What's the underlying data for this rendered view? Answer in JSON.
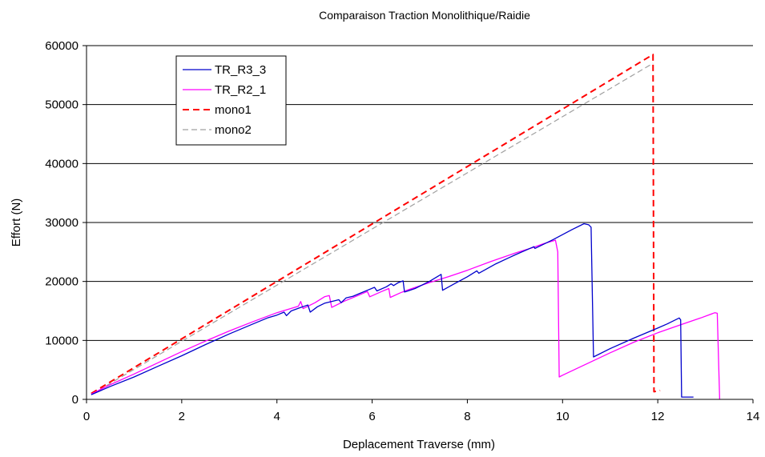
{
  "chart_data": {
    "type": "line",
    "title": "Comparaison Traction Monolithique/Raidie",
    "xlabel": "Deplacement Traverse (mm)",
    "ylabel": "Effort (N)",
    "xlim": [
      0,
      14
    ],
    "ylim": [
      0,
      60000
    ],
    "x_ticks": [
      "0",
      "2",
      "4",
      "6",
      "8",
      "10",
      "12",
      "14"
    ],
    "y_ticks": [
      "0",
      "10000",
      "20000",
      "30000",
      "40000",
      "50000",
      "60000"
    ],
    "grid": "horizontal",
    "legend_position": "top-left",
    "series": [
      {
        "name": "TR_R3_3",
        "color": "#0000cc",
        "style": "solid",
        "points": [
          [
            0.1,
            800
          ],
          [
            0.5,
            2200
          ],
          [
            1.0,
            3800
          ],
          [
            1.5,
            5600
          ],
          [
            2.0,
            7400
          ],
          [
            2.5,
            9300
          ],
          [
            3.0,
            11100
          ],
          [
            3.5,
            12800
          ],
          [
            3.8,
            13800
          ],
          [
            4.0,
            14300
          ],
          [
            4.15,
            14800
          ],
          [
            4.2,
            14200
          ],
          [
            4.3,
            15000
          ],
          [
            4.5,
            15600
          ],
          [
            4.65,
            16000
          ],
          [
            4.7,
            14800
          ],
          [
            4.85,
            15700
          ],
          [
            5.0,
            16300
          ],
          [
            5.3,
            16900
          ],
          [
            5.35,
            16400
          ],
          [
            5.45,
            17200
          ],
          [
            5.6,
            17500
          ],
          [
            5.75,
            18000
          ],
          [
            5.9,
            18500
          ],
          [
            6.05,
            19000
          ],
          [
            6.1,
            18400
          ],
          [
            6.3,
            19100
          ],
          [
            6.4,
            19600
          ],
          [
            6.45,
            19300
          ],
          [
            6.55,
            19800
          ],
          [
            6.65,
            20100
          ],
          [
            6.68,
            18200
          ],
          [
            6.9,
            18800
          ],
          [
            7.2,
            20000
          ],
          [
            7.45,
            21200
          ],
          [
            7.48,
            18500
          ],
          [
            7.7,
            19500
          ],
          [
            8.0,
            20800
          ],
          [
            8.2,
            21800
          ],
          [
            8.24,
            21400
          ],
          [
            8.6,
            23000
          ],
          [
            9.0,
            24500
          ],
          [
            9.4,
            25900
          ],
          [
            9.42,
            25600
          ],
          [
            9.8,
            27100
          ],
          [
            10.2,
            28800
          ],
          [
            10.45,
            29800
          ],
          [
            10.55,
            29600
          ],
          [
            10.6,
            29200
          ],
          [
            10.65,
            7200
          ],
          [
            11.0,
            8600
          ],
          [
            11.5,
            10400
          ],
          [
            12.0,
            12100
          ],
          [
            12.2,
            12800
          ],
          [
            12.45,
            13800
          ],
          [
            12.48,
            13500
          ],
          [
            12.5,
            400
          ],
          [
            12.75,
            400
          ]
        ]
      },
      {
        "name": "TR_R2_1",
        "color": "#ff00ff",
        "style": "solid",
        "points": [
          [
            0.1,
            900
          ],
          [
            0.5,
            2500
          ],
          [
            1.0,
            4300
          ],
          [
            1.5,
            6200
          ],
          [
            2.0,
            8100
          ],
          [
            2.5,
            9900
          ],
          [
            3.0,
            11600
          ],
          [
            3.5,
            13200
          ],
          [
            4.0,
            14700
          ],
          [
            4.45,
            15800
          ],
          [
            4.5,
            16600
          ],
          [
            4.55,
            15400
          ],
          [
            4.8,
            16400
          ],
          [
            5.0,
            17400
          ],
          [
            5.1,
            17600
          ],
          [
            5.15,
            15600
          ],
          [
            5.4,
            16600
          ],
          [
            5.7,
            17600
          ],
          [
            5.9,
            18300
          ],
          [
            5.95,
            17400
          ],
          [
            6.2,
            18300
          ],
          [
            6.35,
            18800
          ],
          [
            6.38,
            17300
          ],
          [
            6.6,
            18100
          ],
          [
            6.8,
            18700
          ],
          [
            7.2,
            19800
          ],
          [
            7.6,
            20800
          ],
          [
            8.0,
            21900
          ],
          [
            8.5,
            23400
          ],
          [
            9.0,
            24800
          ],
          [
            9.4,
            25800
          ],
          [
            9.6,
            26400
          ],
          [
            9.85,
            27000
          ],
          [
            9.9,
            25000
          ],
          [
            9.93,
            3800
          ],
          [
            10.0,
            4100
          ],
          [
            10.5,
            6000
          ],
          [
            11.0,
            7900
          ],
          [
            11.5,
            9700
          ],
          [
            12.0,
            11300
          ],
          [
            12.5,
            12700
          ],
          [
            12.9,
            13800
          ],
          [
            13.2,
            14700
          ],
          [
            13.25,
            14600
          ],
          [
            13.3,
            0
          ]
        ]
      },
      {
        "name": "mono1",
        "color": "#ff0000",
        "style": "dashed-thick",
        "points": [
          [
            0.1,
            1000
          ],
          [
            11.9,
            58500
          ],
          [
            11.92,
            1300
          ],
          [
            12.05,
            1500
          ]
        ]
      },
      {
        "name": "mono2",
        "color": "#a0a0a0",
        "style": "dashed",
        "points": [
          [
            0.1,
            800
          ],
          [
            11.9,
            57000
          ]
        ]
      }
    ]
  }
}
